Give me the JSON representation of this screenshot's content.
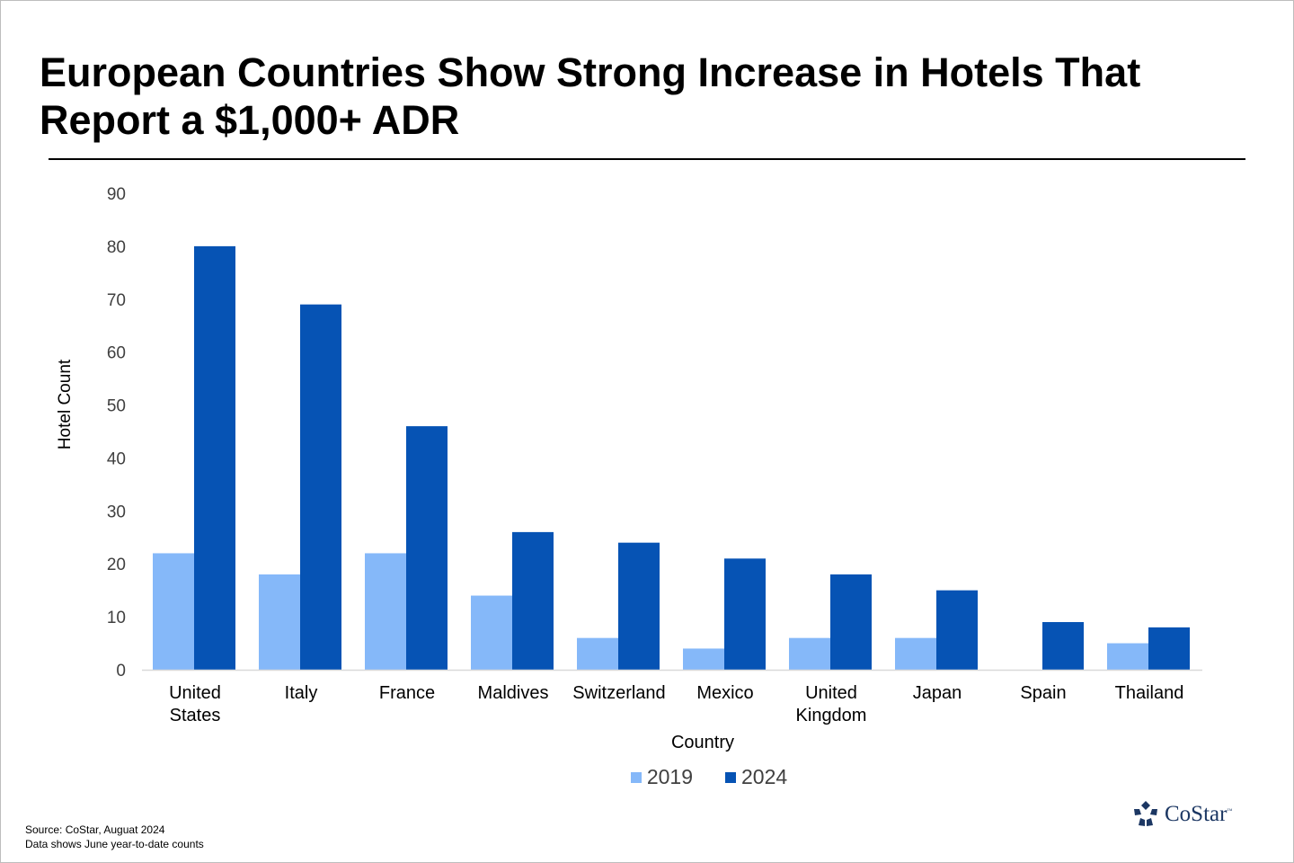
{
  "title": "European Countries Show Strong Increase in Hotels That Report a $1,000+ ADR",
  "footnotes": {
    "source": "Source: CoStar,  Auguat 2024",
    "note": "Data shows June year-to-date counts"
  },
  "logo": {
    "text": "CoStar",
    "tm": "™",
    "icon": "costar-star-logo-icon"
  },
  "colors": {
    "series_2019": "#85b8f9",
    "series_2024": "#0653b4",
    "axis": "#d9d9d9",
    "brand": "#1c3763"
  },
  "chart_data": {
    "type": "bar",
    "xlabel": "Country",
    "ylabel": "Hotel Count",
    "ylim": [
      0,
      90
    ],
    "yticks": [
      0,
      10,
      20,
      30,
      40,
      50,
      60,
      70,
      80,
      90
    ],
    "grid": false,
    "legend_position": "bottom",
    "categories": [
      [
        "United",
        "States"
      ],
      [
        "Italy"
      ],
      [
        "France"
      ],
      [
        "Maldives"
      ],
      [
        "Switzerland"
      ],
      [
        "Mexico"
      ],
      [
        "United",
        "Kingdom"
      ],
      [
        "Japan"
      ],
      [
        "Spain"
      ],
      [
        "Thailand"
      ]
    ],
    "series": [
      {
        "name": "2019",
        "values": [
          22,
          18,
          22,
          14,
          6,
          4,
          6,
          6,
          0,
          5
        ]
      },
      {
        "name": "2024",
        "values": [
          80,
          69,
          46,
          26,
          24,
          21,
          18,
          15,
          9,
          8
        ]
      }
    ]
  }
}
